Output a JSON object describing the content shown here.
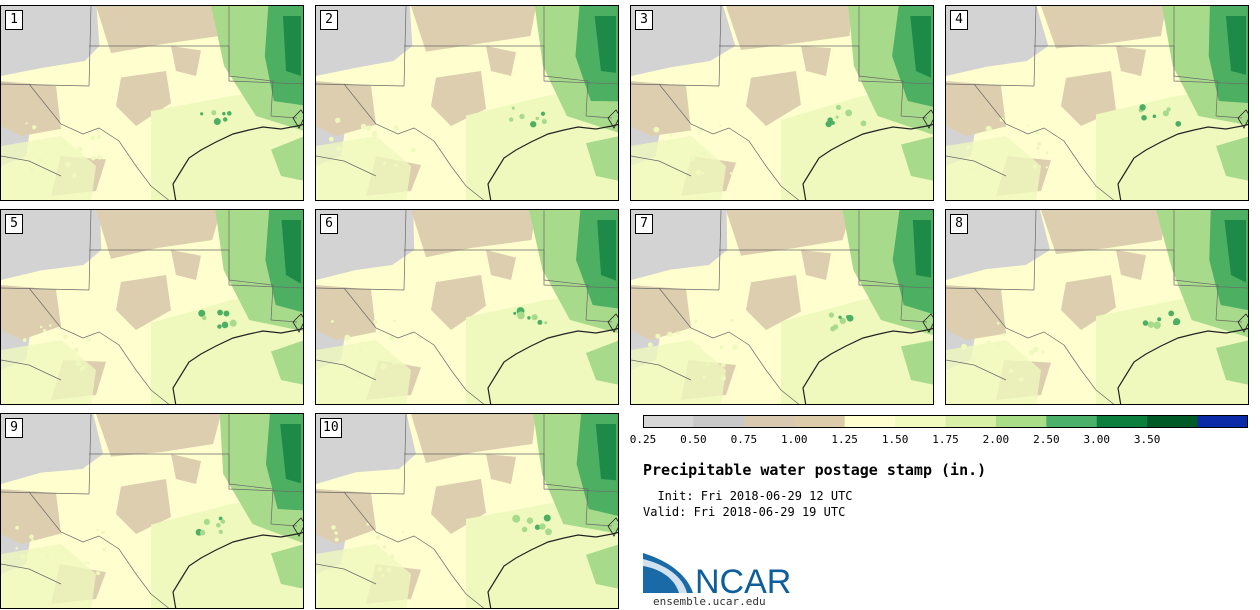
{
  "stamps": [
    {
      "label": "1"
    },
    {
      "label": "2"
    },
    {
      "label": "3"
    },
    {
      "label": "4"
    },
    {
      "label": "5"
    },
    {
      "label": "6"
    },
    {
      "label": "7"
    },
    {
      "label": "8"
    },
    {
      "label": "9"
    },
    {
      "label": "10"
    }
  ],
  "colorbar": {
    "ticks": [
      "0.25",
      "0.50",
      "0.75",
      "1.00",
      "1.25",
      "1.50",
      "1.75",
      "2.00",
      "2.50",
      "3.00",
      "3.50"
    ],
    "colors": [
      "#d7d7d7",
      "#c9c9c9",
      "#d8c9b0",
      "#ddccaa",
      "#fefecf",
      "#f1fbc0",
      "#d7f0a6",
      "#aadd88",
      "#4bb06a",
      "#0c7f3e",
      "#005a28",
      "#0a2aa8"
    ]
  },
  "title": "Precipitable water postage stamp (in.)",
  "init_line": "  Init: Fri 2018-06-29 12 UTC",
  "valid_line": "Valid: Fri 2018-06-29 19 UTC",
  "logo": {
    "text": "NCAR",
    "url": "ensemble.ucar.edu",
    "color": "#0d5e9c"
  },
  "palette": {
    "dry_gray": "#d3d3d3",
    "dry_tan": "#dcceae",
    "pale_yellow": "#fefecf",
    "light_green": "#eff9be",
    "mid_green": "#a8da8b",
    "green": "#4caf62",
    "dark_green": "#1d8a48",
    "border": "#6a6a6a",
    "coast": "#222222"
  }
}
